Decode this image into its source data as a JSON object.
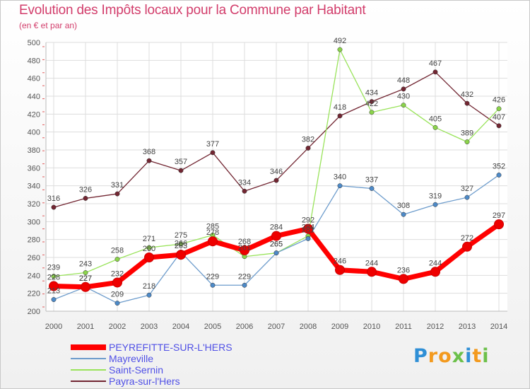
{
  "title": "Evolution des Impôts locaux pour la Commune par Habitant",
  "subtitle": "(en € et par an)",
  "chart_data": {
    "type": "line",
    "title": "Evolution des Impôts locaux pour la Commune par Habitant",
    "subtitle": "(en € et par an)",
    "xlabel": "",
    "ylabel": "",
    "grid": true,
    "ylim": [
      200,
      500
    ],
    "yticks": [
      200,
      220,
      240,
      260,
      280,
      300,
      320,
      340,
      360,
      380,
      400,
      420,
      440,
      460,
      480,
      500
    ],
    "categories": [
      "2000",
      "2001",
      "2002",
      "2003",
      "2004",
      "2005",
      "2006",
      "2007",
      "2008",
      "2009",
      "2010",
      "2011",
      "2012",
      "2013",
      "2014"
    ],
    "series": [
      {
        "name": "Payra-sur-l'Hers",
        "color": "#722632",
        "marker": "#722632",
        "values": [
          316,
          326,
          331,
          368,
          357,
          377,
          334,
          346,
          382,
          418,
          434,
          448,
          467,
          432,
          407
        ]
      },
      {
        "name": "Saint-Sernin",
        "color": "#99e35a",
        "marker": "#8bd44a",
        "values": [
          239,
          243,
          258,
          271,
          275,
          285,
          261,
          265,
          284,
          492,
          422,
          430,
          405,
          389,
          426
        ]
      },
      {
        "name": "Mayreville",
        "color": "#6d9ccc",
        "marker": "#4d8ac8",
        "values": [
          213,
          227,
          209,
          218,
          266,
          229,
          229,
          265,
          281,
          340,
          337,
          308,
          319,
          327,
          352
        ]
      },
      {
        "name": "PEYREFITTE-SUR-L'HERS",
        "color": "#ff0000",
        "marker": "#ee0000",
        "bold": true,
        "values": [
          228,
          227,
          232,
          260,
          263,
          278,
          268,
          284,
          292,
          246,
          244,
          236,
          244,
          272,
          297
        ]
      }
    ],
    "legend": {
      "position": "bottom-left",
      "entries": [
        "PEYREFITTE-SUR-L'HERS",
        "Mayreville",
        "Saint-Sernin",
        "Payra-sur-l'Hers"
      ]
    }
  },
  "logo": {
    "text": "Proxiti",
    "letters": [
      "P",
      "r",
      "o",
      "x",
      "i",
      "t",
      "i"
    ],
    "colors": [
      "#2f8fd6",
      "#f39a1e",
      "#f39a1e",
      "#6cc04a",
      "#2f8fd6",
      "#f39a1e",
      "#6cc04a"
    ]
  }
}
